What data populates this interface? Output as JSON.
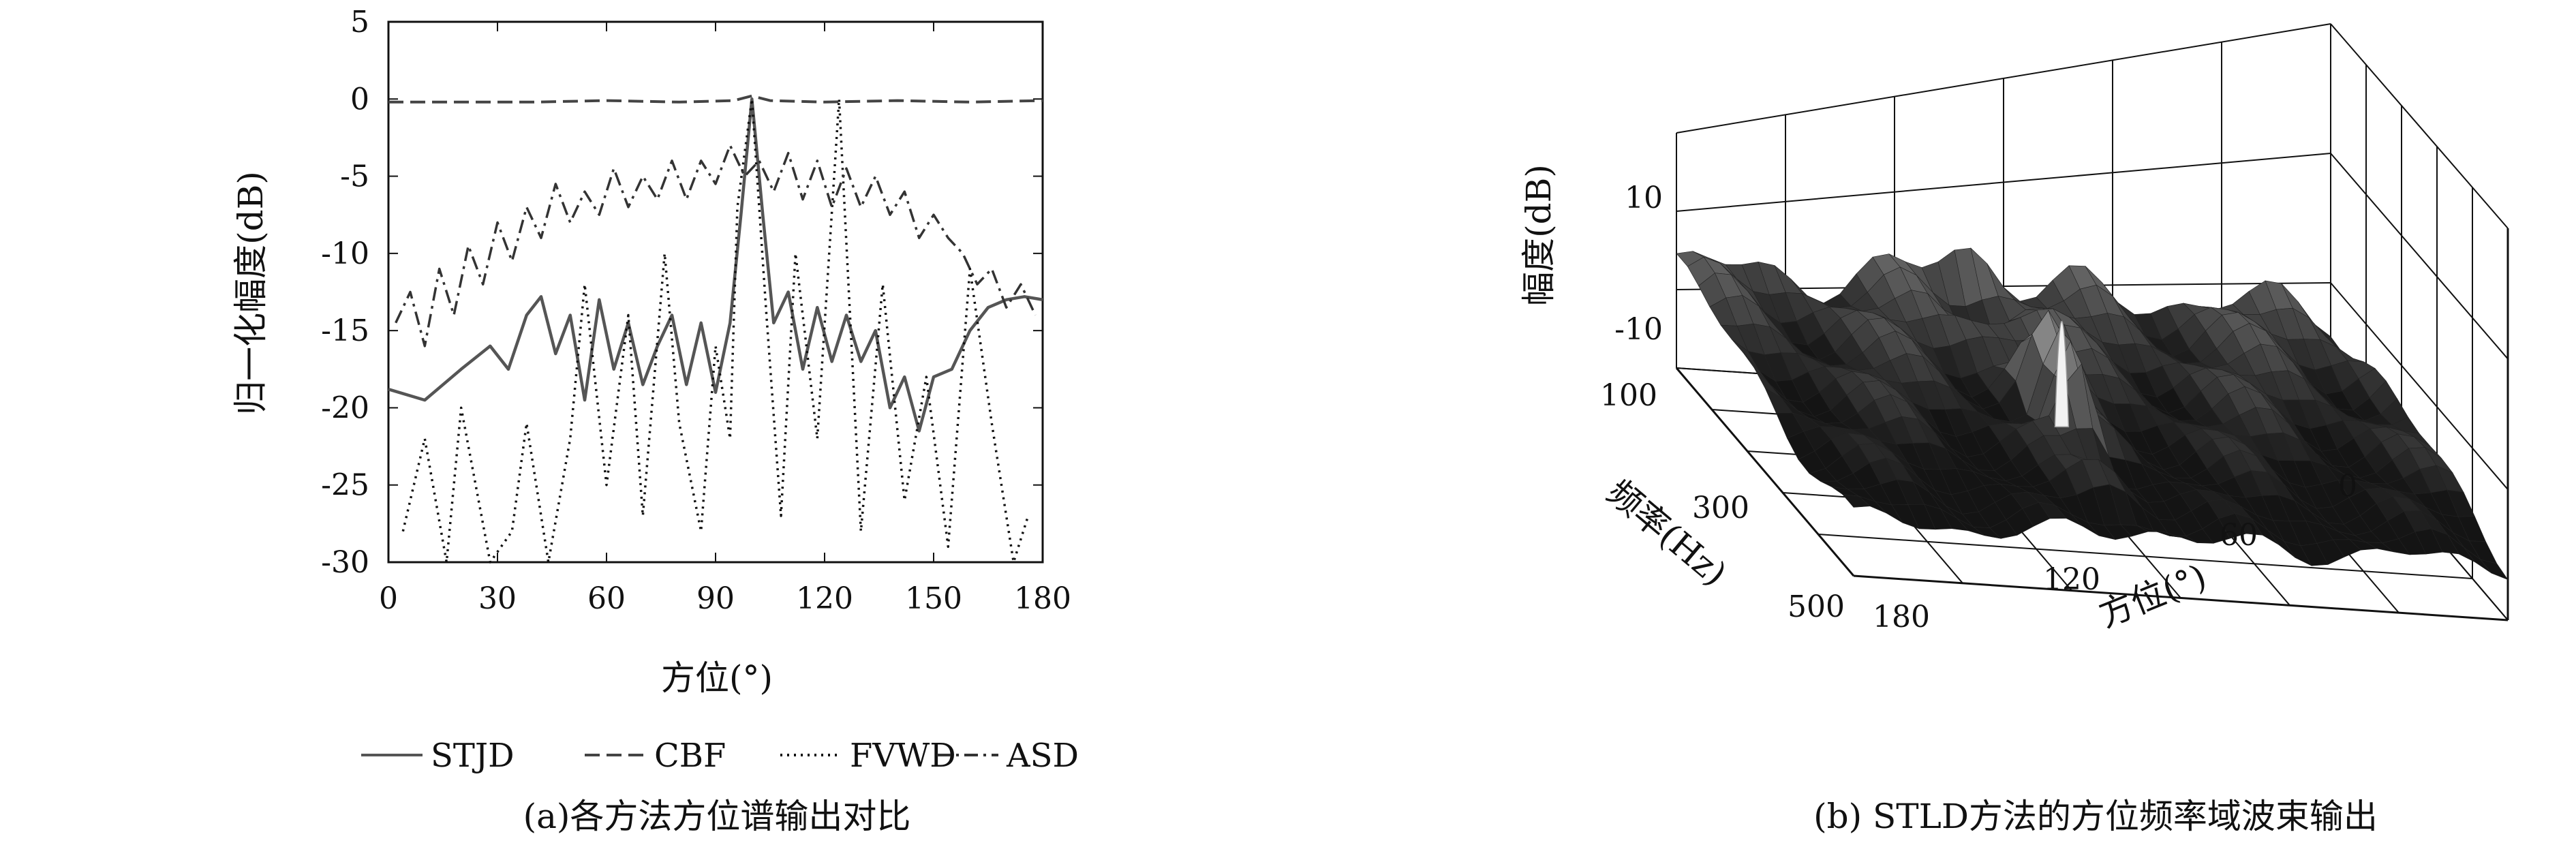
{
  "chart_data": [
    {
      "type": "line",
      "xlabel": "方位(°)",
      "ylabel": "归一化幅度(dB)",
      "xlim": [
        0,
        180
      ],
      "ylim": [
        -30,
        5
      ],
      "xticks": [
        0,
        30,
        60,
        90,
        120,
        150,
        180
      ],
      "yticks": [
        5,
        0,
        -5,
        -10,
        -15,
        -20,
        -25,
        -30
      ],
      "grid": false,
      "legend_position": "bottom",
      "caption": "(a)各方法方位谱输出对比",
      "series": [
        {
          "name": "STJD",
          "style": "solid",
          "x": [
            0,
            10,
            20,
            28,
            33,
            38,
            42,
            46,
            50,
            54,
            58,
            62,
            66,
            70,
            74,
            78,
            82,
            86,
            90,
            94,
            97,
            99,
            100,
            101,
            103,
            106,
            110,
            114,
            118,
            122,
            126,
            130,
            134,
            138,
            142,
            146,
            150,
            155,
            160,
            165,
            170,
            175,
            180
          ],
          "y": [
            -18.8,
            -19.5,
            -17.5,
            -16,
            -17.5,
            -14,
            -12.8,
            -16.5,
            -14,
            -19.5,
            -13,
            -17.5,
            -14.5,
            -18.5,
            -16,
            -14,
            -18.5,
            -14.5,
            -19,
            -14.5,
            -7.5,
            -2.5,
            0,
            -2.5,
            -7.5,
            -14.5,
            -12.5,
            -17.5,
            -13.5,
            -17,
            -14,
            -17,
            -15,
            -20,
            -18,
            -21.5,
            -18,
            -17.5,
            -15,
            -13.5,
            -13,
            -12.8,
            -13
          ]
        },
        {
          "name": "CBF",
          "style": "dashed",
          "x": [
            0,
            20,
            40,
            60,
            80,
            95,
            100,
            105,
            120,
            140,
            160,
            180
          ],
          "y": [
            -0.2,
            -0.2,
            -0.2,
            -0.1,
            -0.2,
            -0.1,
            0.2,
            -0.1,
            -0.2,
            -0.1,
            -0.2,
            -0.1
          ]
        },
        {
          "name": "FVWD",
          "style": "dotted",
          "x": [
            4,
            10,
            16,
            20,
            28,
            34,
            38,
            44,
            50,
            54,
            60,
            66,
            70,
            76,
            80,
            86,
            90,
            94,
            96,
            100,
            104,
            108,
            112,
            118,
            124,
            130,
            136,
            142,
            148,
            154,
            160,
            166,
            172,
            176
          ],
          "y": [
            -28,
            -22,
            -30,
            -20,
            -30,
            -28,
            -21,
            -30,
            -22,
            -12,
            -25,
            -14,
            -27,
            -10,
            -21,
            -28,
            -16,
            -22,
            -7,
            0,
            -14,
            -27,
            -10,
            -22,
            0,
            -28,
            -12,
            -26,
            -18,
            -29,
            -11,
            -21,
            -30,
            -27
          ]
        },
        {
          "name": "ASD",
          "style": "dashdot",
          "x": [
            2,
            6,
            10,
            14,
            18,
            22,
            26,
            30,
            34,
            38,
            42,
            46,
            50,
            54,
            58,
            62,
            66,
            70,
            74,
            78,
            82,
            86,
            90,
            94,
            98,
            102,
            106,
            110,
            114,
            118,
            122,
            126,
            130,
            134,
            138,
            142,
            146,
            150,
            154,
            158,
            162,
            166,
            170,
            174,
            178
          ],
          "y": [
            -14.5,
            -12.5,
            -16,
            -11,
            -14,
            -9.5,
            -12,
            -8,
            -10.5,
            -7,
            -9,
            -5.5,
            -8,
            -6,
            -7.5,
            -4.5,
            -7,
            -5,
            -6.5,
            -4,
            -6.5,
            -4,
            -5.5,
            -3,
            -5,
            -4,
            -6,
            -3.5,
            -6.5,
            -4,
            -7,
            -4.5,
            -7,
            -5,
            -7.5,
            -6,
            -9,
            -7.5,
            -9,
            -10,
            -12,
            -11,
            -13.5,
            -12,
            -14
          ]
        }
      ]
    },
    {
      "type": "surface",
      "xlabel": "方位(°)",
      "ylabel": "频率(Hz)",
      "zlabel": "幅度(dB)",
      "xticks": [
        0,
        60,
        120,
        180
      ],
      "yticks": [
        100,
        300,
        500
      ],
      "zticks": [
        10,
        -10
      ],
      "grid": true,
      "caption": "(b) STLD方法的方位频率域波束输出",
      "peak": {
        "azimuth": 100,
        "amplitude": 15
      }
    }
  ]
}
